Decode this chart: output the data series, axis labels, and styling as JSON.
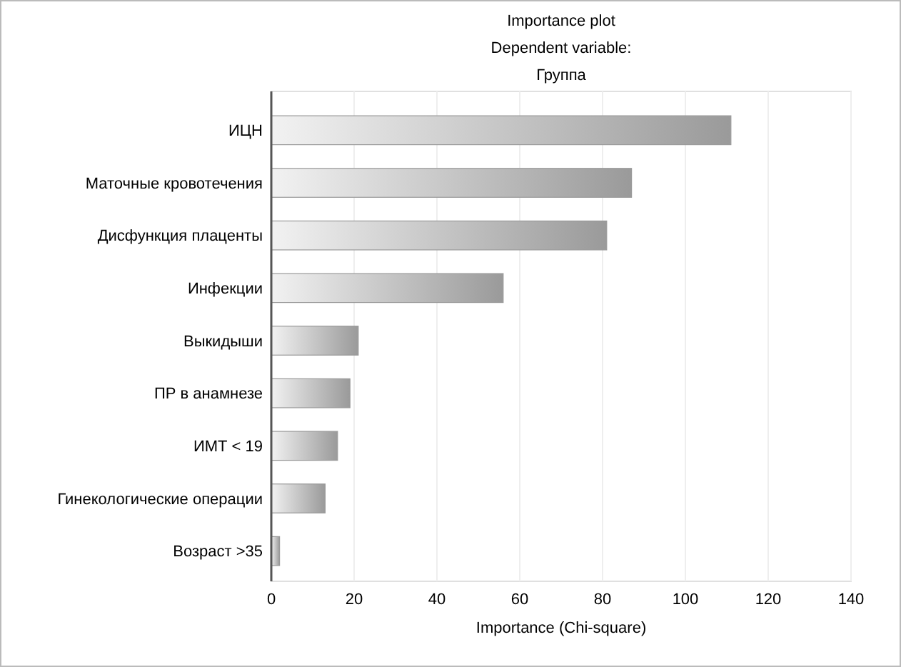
{
  "chart_data": {
    "type": "bar",
    "orientation": "horizontal",
    "title": "Importance plot",
    "subtitle": "Dependent variable:\nГруппа",
    "xlabel": "Importance (Chi-square)",
    "categories": [
      "ИЦН",
      "Маточные кровотечения",
      "Дисфункция плаценты",
      "Инфекции",
      "Выкидыши",
      "ПР в анамнезе",
      "ИМТ < 19",
      "Гинекологические операции",
      "Возраст >35"
    ],
    "values": [
      111,
      87,
      81,
      56,
      21,
      19,
      16,
      13,
      2
    ],
    "color": "#9a9a9a",
    "xlim": [
      0,
      140
    ],
    "xticks": [
      0,
      20,
      40,
      60,
      80,
      100,
      120,
      140
    ],
    "grid": "x"
  }
}
